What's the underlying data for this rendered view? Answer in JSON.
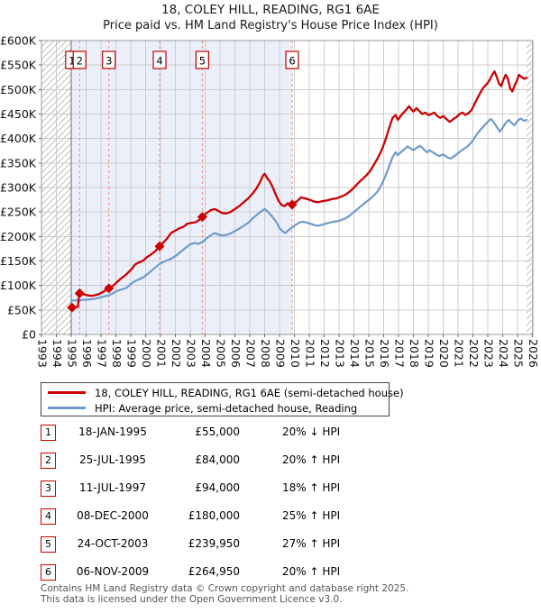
{
  "title": {
    "line1": "18, COLEY HILL, READING, RG1 6AE",
    "line2": "Price paid vs. HM Land Registry's House Price Index (HPI)"
  },
  "chart_data": {
    "type": "line",
    "title": "Price paid vs. HM Land Registry's House Price Index (HPI)",
    "xlabel": "",
    "ylabel": "",
    "x_axis": {
      "min": 1993,
      "max": 2026.3,
      "tick_years": [
        1993,
        1994,
        1995,
        1996,
        1997,
        1998,
        1999,
        2000,
        2001,
        2002,
        2003,
        2004,
        2005,
        2006,
        2007,
        2008,
        2009,
        2010,
        2011,
        2012,
        2013,
        2014,
        2015,
        2016,
        2017,
        2018,
        2019,
        2020,
        2021,
        2022,
        2023,
        2024,
        2025,
        2026
      ]
    },
    "y_axis": {
      "min": 0,
      "max": 600000,
      "tick_step": 50000,
      "tick_values_k": [
        0,
        50,
        100,
        150,
        200,
        250,
        300,
        350,
        400,
        450,
        500,
        550,
        600
      ],
      "tick_labels": [
        "£0",
        "£50K",
        "£100K",
        "£150K",
        "£200K",
        "£250K",
        "£300K",
        "£350K",
        "£400K",
        "£450K",
        "£500K",
        "£550K",
        "£600K"
      ]
    },
    "grid": true,
    "legend_position": "below",
    "data_start_year": 1995.0,
    "data_end_year": 2025.6,
    "ownership_shading": {
      "from": 1995.05,
      "to": 2009.85,
      "color": "#ebeffa"
    },
    "no_data_hatch_color": "#c0c0c0",
    "points_unit": "GBP_thousands",
    "series": [
      {
        "name": "18, COLEY HILL, READING, RG1 6AE (semi-detached house)",
        "color": "#cc0000",
        "points": [
          [
            1995.047,
            55
          ],
          [
            1995.3,
            55.5
          ],
          [
            1995.45,
            56.5
          ],
          [
            1995.53,
            79
          ],
          [
            1995.56,
            84
          ],
          [
            1995.75,
            83
          ],
          [
            1995.95,
            81
          ],
          [
            1996.15,
            79.5
          ],
          [
            1996.4,
            79
          ],
          [
            1996.65,
            80.5
          ],
          [
            1996.9,
            83
          ],
          [
            1997.15,
            87
          ],
          [
            1997.35,
            90.5
          ],
          [
            1997.53,
            94
          ],
          [
            1997.8,
            99
          ],
          [
            1998.05,
            106
          ],
          [
            1998.3,
            113
          ],
          [
            1998.6,
            120
          ],
          [
            1998.85,
            127
          ],
          [
            1999.05,
            133
          ],
          [
            1999.3,
            143
          ],
          [
            1999.55,
            147
          ],
          [
            1999.8,
            150
          ],
          [
            2000.1,
            158
          ],
          [
            2000.4,
            164
          ],
          [
            2000.65,
            170
          ],
          [
            2000.94,
            180
          ],
          [
            2001.2,
            188
          ],
          [
            2001.45,
            196
          ],
          [
            2001.7,
            207
          ],
          [
            2002.0,
            212
          ],
          [
            2002.3,
            217
          ],
          [
            2002.55,
            220
          ],
          [
            2002.8,
            226
          ],
          [
            2003.1,
            228
          ],
          [
            2003.35,
            229
          ],
          [
            2003.6,
            234
          ],
          [
            2003.81,
            239.95
          ],
          [
            2004.1,
            248
          ],
          [
            2004.4,
            254
          ],
          [
            2004.65,
            256
          ],
          [
            2004.9,
            252
          ],
          [
            2005.15,
            248
          ],
          [
            2005.4,
            247
          ],
          [
            2005.7,
            250
          ],
          [
            2006.0,
            256
          ],
          [
            2006.3,
            262
          ],
          [
            2006.6,
            270
          ],
          [
            2006.9,
            278
          ],
          [
            2007.2,
            288
          ],
          [
            2007.45,
            298
          ],
          [
            2007.7,
            312
          ],
          [
            2007.9,
            325
          ],
          [
            2008.0,
            328
          ],
          [
            2008.15,
            320
          ],
          [
            2008.35,
            312
          ],
          [
            2008.55,
            300
          ],
          [
            2008.75,
            285
          ],
          [
            2008.95,
            272
          ],
          [
            2009.15,
            264
          ],
          [
            2009.35,
            262
          ],
          [
            2009.55,
            268
          ],
          [
            2009.7,
            266
          ],
          [
            2009.85,
            264.95
          ],
          [
            2010.05,
            269
          ],
          [
            2010.25,
            274
          ],
          [
            2010.45,
            280
          ],
          [
            2010.7,
            278
          ],
          [
            2010.9,
            276
          ],
          [
            2011.1,
            274
          ],
          [
            2011.35,
            271
          ],
          [
            2011.6,
            270
          ],
          [
            2011.85,
            272
          ],
          [
            2012.1,
            273
          ],
          [
            2012.35,
            275
          ],
          [
            2012.6,
            277
          ],
          [
            2012.85,
            278
          ],
          [
            2013.1,
            281
          ],
          [
            2013.35,
            284
          ],
          [
            2013.6,
            289
          ],
          [
            2013.85,
            295
          ],
          [
            2014.1,
            303
          ],
          [
            2014.35,
            311
          ],
          [
            2014.6,
            318
          ],
          [
            2014.85,
            325
          ],
          [
            2015.1,
            334
          ],
          [
            2015.35,
            347
          ],
          [
            2015.6,
            360
          ],
          [
            2015.85,
            375
          ],
          [
            2016.1,
            395
          ],
          [
            2016.35,
            420
          ],
          [
            2016.6,
            442
          ],
          [
            2016.8,
            448
          ],
          [
            2016.95,
            438
          ],
          [
            2017.1,
            444
          ],
          [
            2017.3,
            452
          ],
          [
            2017.5,
            458
          ],
          [
            2017.7,
            466
          ],
          [
            2017.85,
            460
          ],
          [
            2018.0,
            455
          ],
          [
            2018.2,
            462
          ],
          [
            2018.4,
            456
          ],
          [
            2018.6,
            450
          ],
          [
            2018.8,
            453
          ],
          [
            2019.0,
            448
          ],
          [
            2019.2,
            450
          ],
          [
            2019.4,
            453
          ],
          [
            2019.6,
            446
          ],
          [
            2019.8,
            442
          ],
          [
            2020.0,
            446
          ],
          [
            2020.2,
            440
          ],
          [
            2020.45,
            434
          ],
          [
            2020.7,
            440
          ],
          [
            2020.9,
            444
          ],
          [
            2021.1,
            450
          ],
          [
            2021.3,
            453
          ],
          [
            2021.5,
            448
          ],
          [
            2021.7,
            452
          ],
          [
            2021.9,
            458
          ],
          [
            2022.1,
            470
          ],
          [
            2022.3,
            482
          ],
          [
            2022.5,
            494
          ],
          [
            2022.7,
            504
          ],
          [
            2022.9,
            510
          ],
          [
            2023.1,
            518
          ],
          [
            2023.3,
            530
          ],
          [
            2023.45,
            537
          ],
          [
            2023.6,
            526
          ],
          [
            2023.75,
            512
          ],
          [
            2023.9,
            507
          ],
          [
            2024.05,
            520
          ],
          [
            2024.2,
            530
          ],
          [
            2024.35,
            522
          ],
          [
            2024.5,
            502
          ],
          [
            2024.65,
            496
          ],
          [
            2024.8,
            508
          ],
          [
            2024.95,
            518
          ],
          [
            2025.1,
            530
          ],
          [
            2025.25,
            526
          ],
          [
            2025.45,
            522
          ],
          [
            2025.6,
            524
          ]
        ]
      },
      {
        "name": "HPI: Average price, semi-detached house, Reading",
        "color": "#6f9bc9",
        "points": [
          [
            1995.0,
            69
          ],
          [
            1995.3,
            69.5
          ],
          [
            1995.6,
            70
          ],
          [
            1995.85,
            70.5
          ],
          [
            1996.1,
            71
          ],
          [
            1996.4,
            72
          ],
          [
            1996.7,
            73.5
          ],
          [
            1997.0,
            76
          ],
          [
            1997.25,
            78
          ],
          [
            1997.53,
            79.7
          ],
          [
            1997.8,
            84
          ],
          [
            1998.1,
            89
          ],
          [
            1998.4,
            92
          ],
          [
            1998.7,
            95
          ],
          [
            1999.0,
            103
          ],
          [
            1999.3,
            109
          ],
          [
            1999.6,
            113
          ],
          [
            1999.9,
            118
          ],
          [
            2000.2,
            125
          ],
          [
            2000.5,
            133
          ],
          [
            2000.94,
            144
          ],
          [
            2001.2,
            148
          ],
          [
            2001.5,
            152
          ],
          [
            2001.8,
            156
          ],
          [
            2002.1,
            162
          ],
          [
            2002.4,
            170
          ],
          [
            2002.7,
            177
          ],
          [
            2003.0,
            184
          ],
          [
            2003.3,
            187
          ],
          [
            2003.55,
            185
          ],
          [
            2003.81,
            188.9
          ],
          [
            2004.1,
            196
          ],
          [
            2004.4,
            203
          ],
          [
            2004.65,
            207
          ],
          [
            2004.9,
            204
          ],
          [
            2005.15,
            202
          ],
          [
            2005.4,
            203
          ],
          [
            2005.7,
            206
          ],
          [
            2006.0,
            211
          ],
          [
            2006.3,
            216
          ],
          [
            2006.6,
            222
          ],
          [
            2006.9,
            228
          ],
          [
            2007.2,
            237
          ],
          [
            2007.5,
            245
          ],
          [
            2007.8,
            252
          ],
          [
            2008.0,
            256
          ],
          [
            2008.2,
            251
          ],
          [
            2008.5,
            241
          ],
          [
            2008.8,
            229
          ],
          [
            2009.0,
            217
          ],
          [
            2009.2,
            211
          ],
          [
            2009.4,
            207
          ],
          [
            2009.6,
            213
          ],
          [
            2009.85,
            218
          ],
          [
            2010.1,
            224
          ],
          [
            2010.35,
            229
          ],
          [
            2010.6,
            230
          ],
          [
            2010.85,
            228
          ],
          [
            2011.1,
            226
          ],
          [
            2011.35,
            223
          ],
          [
            2011.6,
            222
          ],
          [
            2011.85,
            224
          ],
          [
            2012.1,
            226
          ],
          [
            2012.35,
            228
          ],
          [
            2012.6,
            230
          ],
          [
            2012.85,
            231
          ],
          [
            2013.1,
            233
          ],
          [
            2013.35,
            236
          ],
          [
            2013.6,
            240
          ],
          [
            2013.85,
            246
          ],
          [
            2014.1,
            252
          ],
          [
            2014.35,
            259
          ],
          [
            2014.6,
            265
          ],
          [
            2014.85,
            271
          ],
          [
            2015.1,
            277
          ],
          [
            2015.35,
            284
          ],
          [
            2015.6,
            292
          ],
          [
            2015.85,
            305
          ],
          [
            2016.1,
            322
          ],
          [
            2016.35,
            342
          ],
          [
            2016.6,
            362
          ],
          [
            2016.8,
            372
          ],
          [
            2016.95,
            366
          ],
          [
            2017.15,
            372
          ],
          [
            2017.4,
            378
          ],
          [
            2017.6,
            384
          ],
          [
            2017.8,
            380
          ],
          [
            2018.0,
            376
          ],
          [
            2018.2,
            381
          ],
          [
            2018.45,
            385
          ],
          [
            2018.7,
            378
          ],
          [
            2018.9,
            372
          ],
          [
            2019.1,
            376
          ],
          [
            2019.3,
            372
          ],
          [
            2019.5,
            368
          ],
          [
            2019.75,
            364
          ],
          [
            2020.0,
            368
          ],
          [
            2020.25,
            362
          ],
          [
            2020.5,
            359
          ],
          [
            2020.75,
            364
          ],
          [
            2021.0,
            370
          ],
          [
            2021.25,
            376
          ],
          [
            2021.5,
            381
          ],
          [
            2021.75,
            387
          ],
          [
            2022.0,
            396
          ],
          [
            2022.25,
            408
          ],
          [
            2022.5,
            418
          ],
          [
            2022.75,
            426
          ],
          [
            2023.0,
            434
          ],
          [
            2023.2,
            440
          ],
          [
            2023.4,
            433
          ],
          [
            2023.6,
            424
          ],
          [
            2023.8,
            414
          ],
          [
            2024.0,
            422
          ],
          [
            2024.2,
            432
          ],
          [
            2024.4,
            438
          ],
          [
            2024.6,
            432
          ],
          [
            2024.8,
            427
          ],
          [
            2025.0,
            436
          ],
          [
            2025.2,
            441
          ],
          [
            2025.45,
            436
          ],
          [
            2025.6,
            438
          ]
        ]
      }
    ],
    "sale_markers": [
      {
        "n": "1",
        "year": 1995.047,
        "price_k": 55
      },
      {
        "n": "2",
        "year": 1995.56,
        "price_k": 84
      },
      {
        "n": "3",
        "year": 1997.53,
        "price_k": 94
      },
      {
        "n": "4",
        "year": 2000.94,
        "price_k": 180
      },
      {
        "n": "5",
        "year": 2003.81,
        "price_k": 239.95
      },
      {
        "n": "6",
        "year": 2009.85,
        "price_k": 264.95
      }
    ],
    "marker_color": "#cc0000",
    "dashed_line_color": "#f4877f"
  },
  "legend": {
    "entries": [
      {
        "swatch_color": "#cc0000",
        "label": "18, COLEY HILL, READING, RG1 6AE (semi-detached house)"
      },
      {
        "swatch_color": "#6f9bc9",
        "label": "HPI: Average price, semi-detached house, Reading"
      }
    ]
  },
  "transactions": [
    {
      "num": "1",
      "date": "18-JAN-1995",
      "price": "£55,000",
      "hpi": "20% ↓ HPI"
    },
    {
      "num": "2",
      "date": "25-JUL-1995",
      "price": "£84,000",
      "hpi": "20% ↑ HPI"
    },
    {
      "num": "3",
      "date": "11-JUL-1997",
      "price": "£94,000",
      "hpi": "18% ↑ HPI"
    },
    {
      "num": "4",
      "date": "08-DEC-2000",
      "price": "£180,000",
      "hpi": "25% ↑ HPI"
    },
    {
      "num": "5",
      "date": "24-OCT-2003",
      "price": "£239,950",
      "hpi": "27% ↑ HPI"
    },
    {
      "num": "6",
      "date": "06-NOV-2009",
      "price": "£264,950",
      "hpi": "20% ↑ HPI"
    }
  ],
  "footer": {
    "line1": "Contains HM Land Registry data © Crown copyright and database right 2025.",
    "line2": "This data is licensed under the Open Government Licence v3.0."
  }
}
